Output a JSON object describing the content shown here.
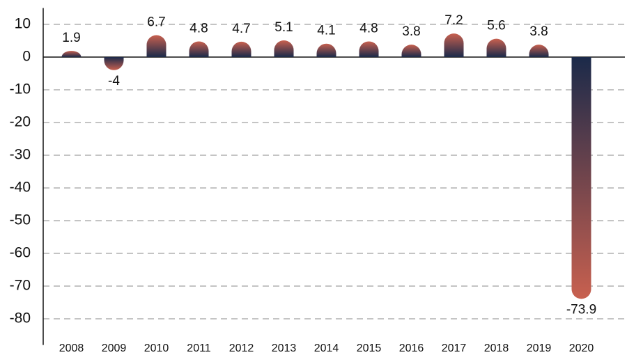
{
  "chart_data": {
    "type": "bar",
    "categories": [
      "2008",
      "2009",
      "2010",
      "2011",
      "2012",
      "2013",
      "2014",
      "2015",
      "2016",
      "2017",
      "2018",
      "2019",
      "2020"
    ],
    "values": [
      1.9,
      -4,
      6.7,
      4.8,
      4.7,
      5.1,
      4.1,
      4.8,
      3.8,
      7.2,
      5.6,
      3.8,
      -73.9
    ],
    "gradient": [
      "#1b2a4a",
      "#c8604f"
    ],
    "ylim": [
      -88,
      15
    ],
    "yticks": [
      10,
      0,
      -10,
      -20,
      -30,
      -40,
      -50,
      -60,
      -70,
      -80
    ],
    "grid": true
  }
}
